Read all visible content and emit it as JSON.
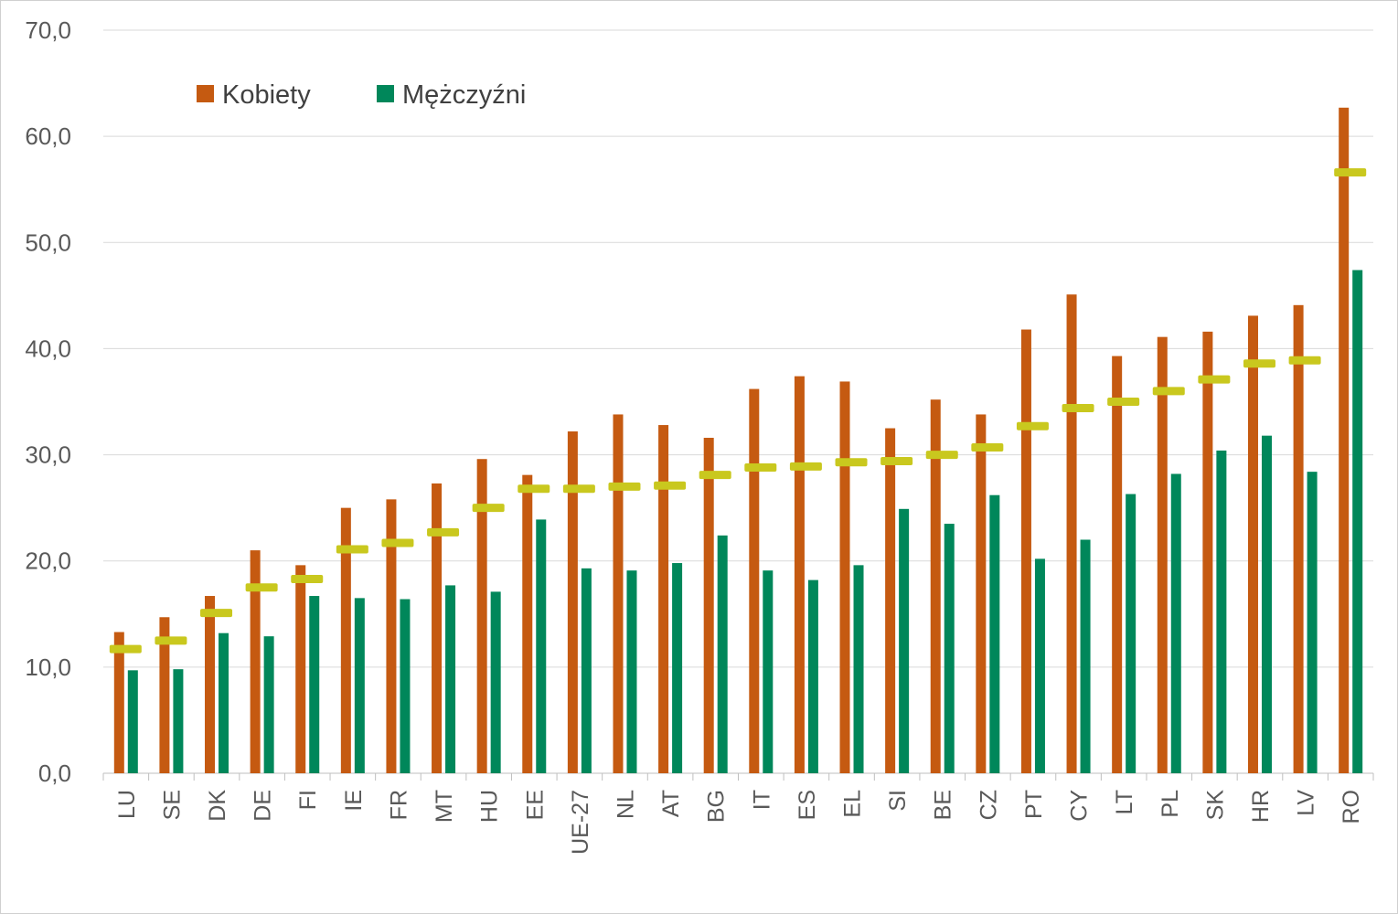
{
  "chart_data": {
    "type": "bar",
    "title": "",
    "xlabel": "",
    "ylabel": "",
    "ylim": [
      0,
      70
    ],
    "yticks": [
      "0,0",
      "10,0",
      "20,0",
      "30,0",
      "40,0",
      "50,0",
      "60,0",
      "70,0"
    ],
    "grid": true,
    "legend_position": "top-left",
    "categories": [
      "LU",
      "SE",
      "DK",
      "DE",
      "FI",
      "IE",
      "FR",
      "MT",
      "HU",
      "EE",
      "UE-27",
      "NL",
      "AT",
      "BG",
      "IT",
      "ES",
      "EL",
      "SI",
      "BE",
      "CZ",
      "PT",
      "CY",
      "LT",
      "PL",
      "SK",
      "HR",
      "LV",
      "RO"
    ],
    "series": [
      {
        "name": "Kobiety",
        "color": "#c55a11",
        "values": [
          13.3,
          14.7,
          16.7,
          21.0,
          19.6,
          25.0,
          25.8,
          27.3,
          29.6,
          28.1,
          32.2,
          33.8,
          32.8,
          31.6,
          36.2,
          37.4,
          36.9,
          32.5,
          35.2,
          33.8,
          41.8,
          45.1,
          39.3,
          41.1,
          41.6,
          43.1,
          44.1,
          62.7
        ]
      },
      {
        "name": "Mężczyźni",
        "color": "#00875a",
        "values": [
          9.7,
          9.8,
          13.2,
          12.9,
          16.7,
          16.5,
          16.4,
          17.7,
          17.1,
          23.9,
          19.3,
          19.1,
          19.8,
          22.4,
          19.1,
          18.2,
          19.6,
          24.9,
          23.5,
          26.2,
          20.2,
          22.0,
          26.3,
          28.2,
          30.4,
          31.8,
          28.4,
          47.4
        ]
      }
    ],
    "markers": {
      "name": "",
      "color": "#c9c81e",
      "values": [
        11.7,
        12.5,
        15.1,
        17.5,
        18.3,
        21.1,
        21.7,
        22.7,
        25.0,
        26.8,
        26.8,
        27.0,
        27.1,
        28.1,
        28.8,
        28.9,
        29.3,
        29.4,
        30.0,
        30.7,
        32.7,
        34.4,
        35.0,
        36.0,
        37.1,
        38.6,
        38.9,
        56.6
      ]
    }
  }
}
